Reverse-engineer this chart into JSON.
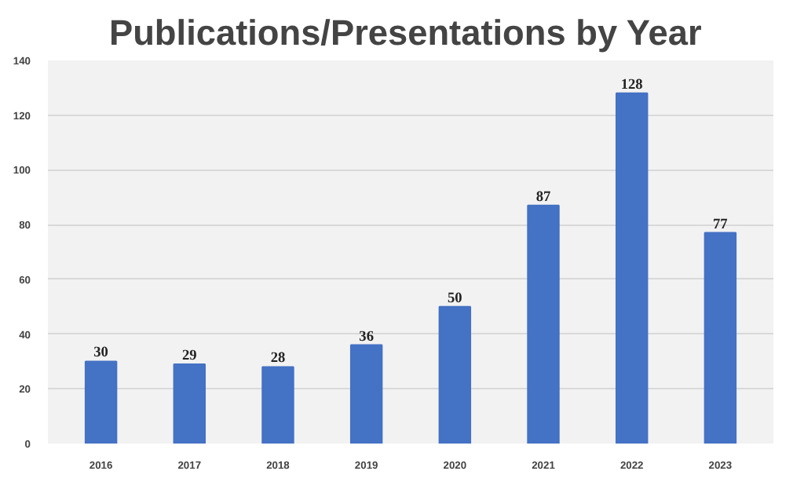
{
  "chart_data": {
    "type": "bar",
    "title": "Publications/Presentations  by Year",
    "categories": [
      "2016",
      "2017",
      "2018",
      "2019",
      "2020",
      "2021",
      "2022",
      "2023"
    ],
    "values": [
      30,
      29,
      28,
      36,
      50,
      87,
      128,
      77
    ],
    "color": "#4472c4",
    "ylim": [
      0,
      140
    ],
    "yticks": [
      0,
      20,
      40,
      60,
      80,
      100,
      120,
      140
    ],
    "grid": "y",
    "data_labels": true
  }
}
